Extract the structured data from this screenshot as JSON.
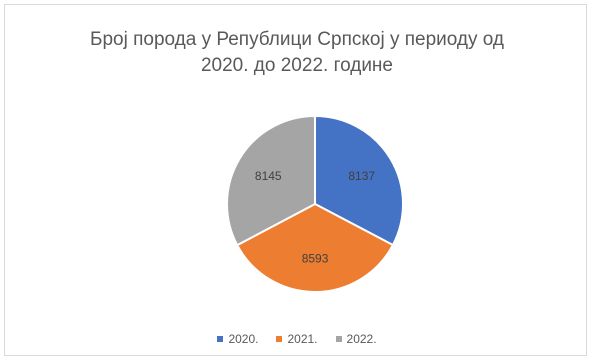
{
  "chart_data": {
    "type": "pie",
    "title_line1": "Број порода у Републици Српској у периоду од",
    "title_line2": "2020. до 2022. године",
    "slices": [
      {
        "label": "2020.",
        "value": 8137,
        "color": "#4472c4"
      },
      {
        "label": "2021.",
        "value": 8593,
        "color": "#ed7d31"
      },
      {
        "label": "2022.",
        "value": 8145,
        "color": "#a5a5a5"
      }
    ],
    "legend_position": "bottom"
  }
}
